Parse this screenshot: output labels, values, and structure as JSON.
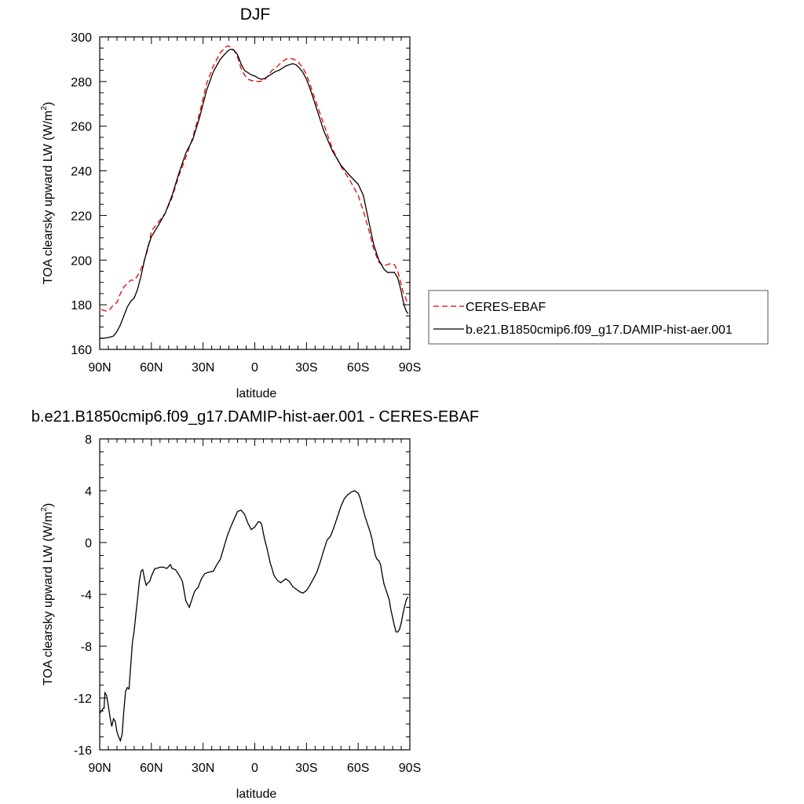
{
  "chart_data": [
    {
      "type": "line",
      "title": "DJF",
      "xlabel": "latitude",
      "ylabel": "TOA clearsky upward LW (W/m",
      "ylabel_sup": "2",
      "ylabel_close": ")",
      "xlim": [
        90,
        -90
      ],
      "ylim": [
        160,
        300
      ],
      "xticks": [
        {
          "v": 90,
          "l": "90N"
        },
        {
          "v": 60,
          "l": "60N"
        },
        {
          "v": 30,
          "l": "30N"
        },
        {
          "v": 0,
          "l": "0"
        },
        {
          "v": -30,
          "l": "30S"
        },
        {
          "v": -60,
          "l": "60S"
        },
        {
          "v": -90,
          "l": "90S"
        }
      ],
      "yticks": [
        160,
        180,
        200,
        220,
        240,
        260,
        280,
        300
      ],
      "legend": "right",
      "series": [
        {
          "name": "CERES-EBAF",
          "color": "#e60000",
          "dash": "dashed",
          "x": [
            89,
            88,
            86,
            84,
            82,
            80,
            78,
            76,
            74,
            72,
            70,
            68,
            66,
            64,
            62,
            60,
            56,
            52,
            48,
            44,
            40,
            36,
            32,
            28,
            24,
            20,
            16,
            14,
            12,
            10,
            8,
            6,
            4,
            2,
            0,
            -2,
            -4,
            -6,
            -8,
            -10,
            -12,
            -14,
            -16,
            -18,
            -20,
            -22,
            -24,
            -26,
            -28,
            -30,
            -32,
            -35,
            -40,
            -45,
            -50,
            -55,
            -60,
            -63,
            -66,
            -69,
            -72,
            -75,
            -77,
            -79,
            -81,
            -83,
            -85,
            -86,
            -87,
            -88,
            -89
          ],
          "y": [
            178,
            177.5,
            177.2,
            178,
            180,
            181,
            185,
            188,
            189.5,
            191,
            191,
            193,
            196,
            200,
            205,
            213,
            217,
            221,
            228,
            238,
            246,
            255,
            266,
            279,
            287,
            293,
            296,
            295.5,
            294,
            291,
            286,
            283,
            281,
            280.5,
            280.2,
            280,
            280.2,
            281,
            283,
            285,
            286,
            287.5,
            289,
            290,
            290.5,
            290.2,
            289.5,
            288,
            286,
            283,
            279,
            272,
            261,
            250,
            242,
            236,
            229,
            222,
            214,
            205,
            199,
            197.5,
            198,
            198.5,
            198,
            195,
            189,
            186,
            184,
            182,
            180
          ]
        },
        {
          "name": "b.e21.B1850cmip6.f09_g17.DAMIP-hist-aer.001",
          "color": "#000000",
          "dash": "solid",
          "x": [
            90,
            88,
            86,
            84,
            82,
            80,
            78,
            76,
            74,
            72,
            70,
            68,
            66,
            64,
            62,
            60,
            56,
            52,
            48,
            44,
            40,
            36,
            32,
            28,
            24,
            20,
            16,
            14,
            12,
            10,
            8,
            6,
            4,
            2,
            0,
            -2,
            -4,
            -6,
            -8,
            -10,
            -12,
            -14,
            -16,
            -18,
            -20,
            -22,
            -24,
            -26,
            -28,
            -30,
            -32,
            -35,
            -40,
            -45,
            -50,
            -55,
            -60,
            -63,
            -66,
            -69,
            -72,
            -75,
            -77,
            -79,
            -81,
            -83,
            -85,
            -86,
            -87,
            -88,
            -89
          ],
          "y": [
            165,
            165,
            165.2,
            165.5,
            166,
            168,
            171,
            175,
            179,
            181.5,
            183,
            187,
            193,
            200,
            206,
            210.5,
            215.5,
            221,
            229,
            239,
            248,
            254,
            264,
            276,
            284.5,
            290,
            293.5,
            294.5,
            294,
            292,
            288,
            285,
            284,
            283,
            282.5,
            281.5,
            281,
            281.5,
            282.5,
            283.5,
            284.5,
            285,
            286,
            287,
            287.5,
            288,
            287.5,
            286,
            284,
            281,
            277,
            270,
            258,
            249,
            242.5,
            238,
            234,
            229,
            218,
            207,
            200,
            196,
            194.5,
            194.5,
            194.5,
            192,
            186,
            182,
            179,
            177,
            176
          ]
        }
      ]
    },
    {
      "type": "line",
      "title": "b.e21.B1850cmip6.f09_g17.DAMIP-hist-aer.001 - CERES-EBAF",
      "xlabel": "latitude",
      "ylabel": "TOA clearsky upward LW (W/m",
      "ylabel_sup": "2",
      "ylabel_close": ")",
      "xlim": [
        90,
        -90
      ],
      "ylim": [
        -16,
        8
      ],
      "xticks": [
        {
          "v": 90,
          "l": "90N"
        },
        {
          "v": 60,
          "l": "60N"
        },
        {
          "v": 30,
          "l": "30N"
        },
        {
          "v": 0,
          "l": "0"
        },
        {
          "v": -30,
          "l": "30S"
        },
        {
          "v": -60,
          "l": "60S"
        },
        {
          "v": -90,
          "l": "90S"
        }
      ],
      "yticks": [
        -16,
        -12,
        -8,
        -4,
        0,
        4,
        8
      ],
      "series": [
        {
          "name": "",
          "color": "#000000",
          "dash": "solid",
          "x": [
            90,
            89,
            88,
            87.5,
            87,
            86,
            85,
            84,
            83,
            82,
            81,
            80,
            79,
            78,
            77,
            76,
            75,
            74,
            73,
            72,
            71,
            70,
            69,
            68,
            67,
            66,
            65,
            64,
            63,
            62,
            61,
            60,
            59,
            58,
            57,
            55,
            53,
            51,
            49,
            48,
            46,
            44,
            42,
            40,
            38,
            36,
            35,
            34,
            33,
            31,
            29,
            27,
            24,
            22,
            20,
            18,
            16,
            14,
            12,
            10,
            8,
            6,
            4,
            2,
            0,
            -1,
            -2,
            -3,
            -4,
            -5,
            -6,
            -7,
            -8,
            -9,
            -10,
            -11,
            -12,
            -13,
            -14,
            -15,
            -16,
            -18,
            -20,
            -22,
            -24,
            -26,
            -28,
            -30,
            -32,
            -34,
            -36,
            -38,
            -40,
            -42,
            -44,
            -46,
            -48,
            -50,
            -52,
            -54,
            -56,
            -58,
            -60,
            -61,
            -62,
            -63,
            -64,
            -65,
            -66,
            -67,
            -68,
            -69,
            -70,
            -71,
            -72,
            -73,
            -74,
            -75,
            -76,
            -77,
            -78,
            -79,
            -80,
            -81,
            -82,
            -83,
            -84,
            -85,
            -86,
            -87,
            -88,
            -89
          ],
          "y": [
            -13.2,
            -13.0,
            -12.8,
            -12.8,
            -11.6,
            -11.8,
            -12.6,
            -13.5,
            -14.2,
            -13.6,
            -13.8,
            -14.6,
            -15.0,
            -15.3,
            -14.8,
            -13.0,
            -11.5,
            -11.2,
            -11.3,
            -9.5,
            -7.7,
            -6.8,
            -5.5,
            -4.3,
            -3.0,
            -2.2,
            -2.1,
            -2.8,
            -3.3,
            -3.1,
            -3.0,
            -2.6,
            -2.3,
            -2.0,
            -2.0,
            -1.9,
            -1.9,
            -2.0,
            -1.7,
            -2.0,
            -2.1,
            -2.5,
            -3.0,
            -4.5,
            -5.0,
            -4.2,
            -3.8,
            -3.6,
            -3.5,
            -2.8,
            -2.4,
            -2.3,
            -2.2,
            -1.7,
            -1.3,
            -0.4,
            0.5,
            1.2,
            1.8,
            2.4,
            2.5,
            2.2,
            1.5,
            1.0,
            1.2,
            1.4,
            1.6,
            1.6,
            1.4,
            0.7,
            0.1,
            -0.4,
            -1.0,
            -1.6,
            -2.0,
            -2.5,
            -2.7,
            -2.9,
            -3.0,
            -3.1,
            -3.0,
            -2.8,
            -3.0,
            -3.4,
            -3.6,
            -3.8,
            -3.9,
            -3.7,
            -3.3,
            -2.8,
            -2.3,
            -1.5,
            -0.6,
            0.2,
            0.5,
            1.2,
            2.0,
            2.8,
            3.4,
            3.7,
            3.9,
            4.0,
            3.8,
            3.5,
            3.0,
            2.5,
            2.0,
            1.6,
            1.2,
            0.8,
            0.3,
            -0.4,
            -1.0,
            -1.3,
            -1.4,
            -1.7,
            -2.5,
            -3.2,
            -3.6,
            -4.0,
            -4.4,
            -5.2,
            -5.8,
            -6.4,
            -6.9,
            -6.9,
            -6.7,
            -6.2,
            -5.5,
            -4.9,
            -4.4,
            -4.2
          ]
        }
      ]
    }
  ]
}
